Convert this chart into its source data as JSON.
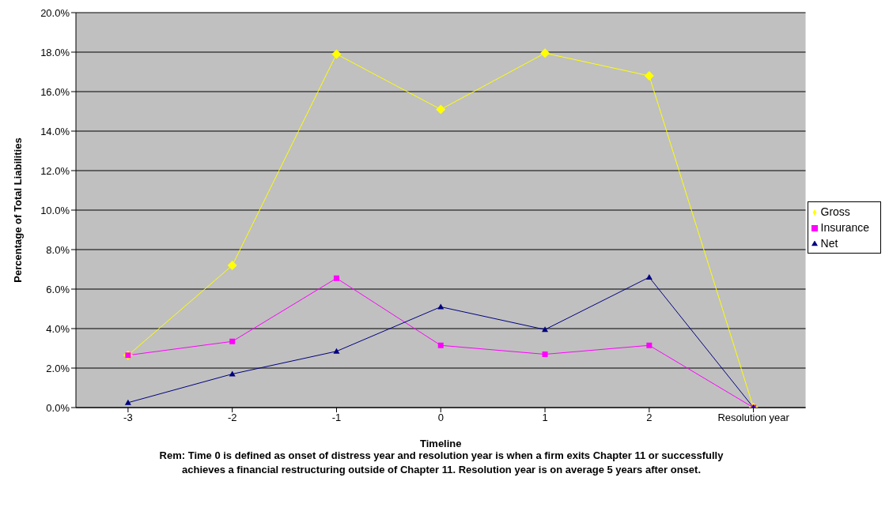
{
  "chart_data": {
    "type": "line",
    "xlabel": "Timeline",
    "ylabel": "Percentage of Total Liabilities",
    "categories": [
      "-3",
      "-2",
      "-1",
      "0",
      "1",
      "2",
      "Resolution year"
    ],
    "series": [
      {
        "name": "Gross",
        "color": "#ffff00",
        "marker": "diamond",
        "values": [
          2.65,
          7.2,
          17.9,
          15.1,
          17.95,
          16.8,
          0
        ]
      },
      {
        "name": "Insurance",
        "color": "#ff00ff",
        "marker": "square",
        "values": [
          2.65,
          3.35,
          6.55,
          3.15,
          2.7,
          3.15,
          0
        ]
      },
      {
        "name": "Net",
        "color": "#000080",
        "marker": "triangle",
        "values": [
          0.25,
          1.7,
          2.85,
          5.1,
          3.95,
          6.6,
          0
        ]
      }
    ],
    "ylim": [
      0,
      20
    ],
    "yticks": [
      {
        "value": 0,
        "label": "0.0%"
      },
      {
        "value": 2,
        "label": "2.0%"
      },
      {
        "value": 4,
        "label": "4.0%"
      },
      {
        "value": 6,
        "label": "6.0%"
      },
      {
        "value": 8,
        "label": "8.0%"
      },
      {
        "value": 10,
        "label": "10.0%"
      },
      {
        "value": 12,
        "label": "12.0%"
      },
      {
        "value": 14,
        "label": "14.0%"
      },
      {
        "value": 16,
        "label": "16.0%"
      },
      {
        "value": 18,
        "label": "18.0%"
      },
      {
        "value": 20,
        "label": "20.0%"
      }
    ],
    "grid": "y",
    "legend": "right",
    "line_style": "solid",
    "annotations": [
      "Rem: Time 0 is defined as onset of distress year and resolution year is when a firm exits Chapter 11 or successfully achieves a financial restructuring outside of Chapter 11.  Resolution year is on average 5 years after onset."
    ]
  }
}
